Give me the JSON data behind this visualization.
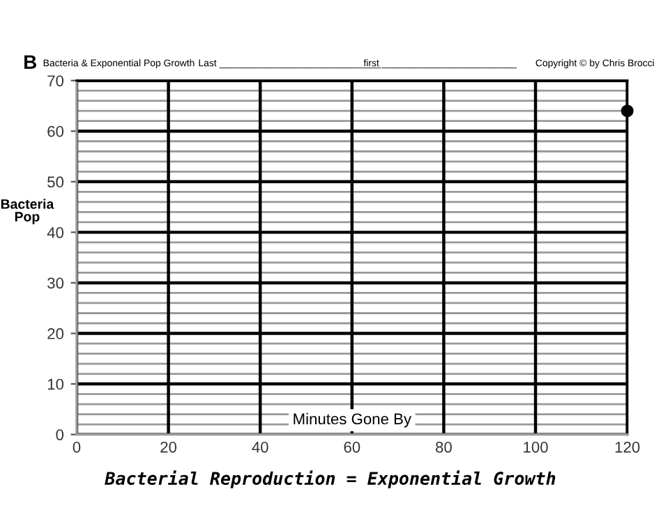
{
  "chart_data": {
    "type": "scatter",
    "title": "Bacterial Reproduction = Exponential Growth",
    "xlabel": "Minutes Gone By",
    "ylabel": "Bacteria\nPop",
    "annotations": [
      "B",
      "Bacteria & Exponential Pop Growth",
      "Last ______________________________",
      "first _________________________",
      "Copyright © by Chris Brocci"
    ],
    "x": [
      120
    ],
    "series": [
      {
        "color": "#000000",
        "values": [
          64
        ]
      }
    ],
    "marker": "circle",
    "xlim": [
      0,
      120
    ],
    "xticks": [
      0,
      20,
      40,
      60,
      80,
      100,
      120
    ],
    "ylim": [
      0,
      70
    ],
    "yticks": [
      0,
      {
        "value": 2,
        "label": null
      },
      {
        "value": 4,
        "label": null
      },
      {
        "value": 6,
        "label": null
      },
      {
        "value": 8,
        "label": null
      },
      10,
      {
        "value": 12,
        "label": null
      },
      {
        "value": 14,
        "label": null
      },
      {
        "value": 16,
        "label": null
      },
      {
        "value": 18,
        "label": null
      },
      20,
      {
        "value": 22,
        "label": null
      },
      {
        "value": 24,
        "label": null
      },
      {
        "value": 26,
        "label": null
      },
      {
        "value": 28,
        "label": null
      },
      30,
      {
        "value": 32,
        "label": null
      },
      {
        "value": 34,
        "label": null
      },
      {
        "value": 36,
        "label": null
      },
      {
        "value": 38,
        "label": null
      },
      40,
      {
        "value": 42,
        "label": null
      },
      {
        "value": 44,
        "label": null
      },
      {
        "value": 46,
        "label": null
      },
      {
        "value": 48,
        "label": null
      },
      50,
      {
        "value": 52,
        "label": null
      },
      {
        "value": 54,
        "label": null
      },
      {
        "value": 56,
        "label": null
      },
      {
        "value": 58,
        "label": null
      },
      60,
      {
        "value": 62,
        "label": null
      },
      {
        "value": 64,
        "label": null
      },
      {
        "value": 66,
        "label": null
      },
      {
        "value": 68,
        "label": null
      },
      70
    ],
    "grid": true
  }
}
